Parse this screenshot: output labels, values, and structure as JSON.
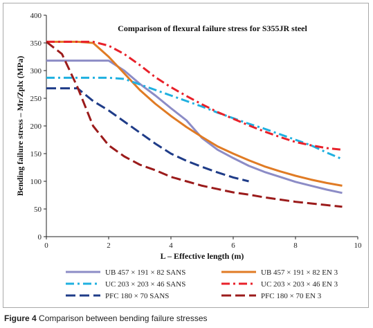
{
  "colors": {
    "ub_sans": "#8c8cc6",
    "ub_en3": "#e07b24",
    "uc_sans": "#1fb0e0",
    "uc_en3": "#e8212a",
    "pfc_sans": "#1f3c88",
    "pfc_en3": "#9b1b1b"
  },
  "caption": {
    "label": "Figure 4",
    "text": "Comparison between bending failure stresses"
  },
  "chart_data": {
    "type": "line",
    "title": "Comparison of flexural failure stress for S355JR steel",
    "xlabel": "L – Effective length (m)",
    "ylabel": "Bending failure stress – Mr/Zplx (MPa)",
    "xlim": [
      0,
      10
    ],
    "ylim": [
      0,
      400
    ],
    "xticks": [
      "0",
      "2",
      "4",
      "6",
      "8",
      "10"
    ],
    "yticks": [
      "0",
      "50",
      "100",
      "150",
      "200",
      "250",
      "300",
      "350",
      "400"
    ],
    "grid": false,
    "legend_position": "bottom",
    "series": [
      {
        "name": "UB 457 × 191 × 82 SANS",
        "style": "solid",
        "color_key": "ub_sans",
        "points": [
          [
            0,
            318
          ],
          [
            0.5,
            318
          ],
          [
            1,
            318
          ],
          [
            1.5,
            318
          ],
          [
            2,
            318
          ],
          [
            2.5,
            300
          ],
          [
            3,
            276
          ],
          [
            3.5,
            255
          ],
          [
            4,
            232
          ],
          [
            4.5,
            210
          ],
          [
            5,
            178
          ],
          [
            5.5,
            157
          ],
          [
            6,
            142
          ],
          [
            6.5,
            128
          ],
          [
            7,
            117
          ],
          [
            7.5,
            108
          ],
          [
            8,
            99
          ],
          [
            8.5,
            92
          ],
          [
            9,
            85
          ],
          [
            9.5,
            79
          ]
        ]
      },
      {
        "name": "UB 457 × 191 × 82 EN 3",
        "style": "solid",
        "color_key": "ub_en3",
        "points": [
          [
            0,
            352
          ],
          [
            0.5,
            352
          ],
          [
            1,
            352
          ],
          [
            1.5,
            350
          ],
          [
            2,
            325
          ],
          [
            2.5,
            295
          ],
          [
            3,
            265
          ],
          [
            3.5,
            240
          ],
          [
            4,
            218
          ],
          [
            4.5,
            198
          ],
          [
            5,
            180
          ],
          [
            5.5,
            163
          ],
          [
            6,
            150
          ],
          [
            6.5,
            138
          ],
          [
            7,
            127
          ],
          [
            7.5,
            118
          ],
          [
            8,
            110
          ],
          [
            8.5,
            103
          ],
          [
            9,
            97
          ],
          [
            9.5,
            92
          ]
        ]
      },
      {
        "name": "UC 203 × 203 × 46 SANS",
        "style": "dashdot",
        "color_key": "uc_sans",
        "points": [
          [
            0,
            287
          ],
          [
            0.5,
            287
          ],
          [
            1,
            287
          ],
          [
            1.5,
            287
          ],
          [
            2,
            287
          ],
          [
            2.5,
            285
          ],
          [
            3,
            275
          ],
          [
            3.5,
            265
          ],
          [
            4,
            255
          ],
          [
            4.5,
            245
          ],
          [
            5,
            235
          ],
          [
            5.5,
            224
          ],
          [
            6,
            214
          ],
          [
            6.5,
            204
          ],
          [
            7,
            195
          ],
          [
            7.5,
            185
          ],
          [
            8,
            175
          ],
          [
            8.5,
            165
          ],
          [
            9,
            152
          ],
          [
            9.5,
            140
          ]
        ]
      },
      {
        "name": "UC 203 × 203 × 46 EN 3",
        "style": "dashdot",
        "color_key": "uc_en3",
        "points": [
          [
            0,
            352
          ],
          [
            0.5,
            352
          ],
          [
            1,
            352
          ],
          [
            1.5,
            352
          ],
          [
            2,
            345
          ],
          [
            2.5,
            330
          ],
          [
            3,
            310
          ],
          [
            3.5,
            288
          ],
          [
            4,
            270
          ],
          [
            4.5,
            254
          ],
          [
            5,
            239
          ],
          [
            5.5,
            225
          ],
          [
            6,
            213
          ],
          [
            6.5,
            201
          ],
          [
            7,
            190
          ],
          [
            7.5,
            180
          ],
          [
            8,
            171
          ],
          [
            8.5,
            165
          ],
          [
            9,
            160
          ],
          [
            9.5,
            157
          ]
        ]
      },
      {
        "name": "PFC 180 × 70 SANS",
        "style": "dash",
        "color_key": "pfc_sans",
        "points": [
          [
            0,
            268
          ],
          [
            0.5,
            268
          ],
          [
            1,
            268
          ],
          [
            1.5,
            245
          ],
          [
            2,
            228
          ],
          [
            2.5,
            208
          ],
          [
            3,
            188
          ],
          [
            3.5,
            168
          ],
          [
            4,
            150
          ],
          [
            4.5,
            137
          ],
          [
            5,
            126
          ],
          [
            5.5,
            116
          ],
          [
            6,
            107
          ],
          [
            6.5,
            100
          ]
        ]
      },
      {
        "name": "PFC 180 × 70 EN 3",
        "style": "dash",
        "color_key": "pfc_en3",
        "points": [
          [
            0,
            352
          ],
          [
            0.5,
            330
          ],
          [
            1,
            270
          ],
          [
            1.5,
            200
          ],
          [
            2,
            165
          ],
          [
            2.5,
            145
          ],
          [
            3,
            130
          ],
          [
            3.5,
            120
          ],
          [
            4,
            108
          ],
          [
            4.5,
            100
          ],
          [
            5,
            92
          ],
          [
            5.5,
            86
          ],
          [
            6,
            80
          ],
          [
            6.5,
            76
          ],
          [
            7,
            71
          ],
          [
            7.5,
            67
          ],
          [
            8,
            63
          ],
          [
            8.5,
            60
          ],
          [
            9,
            57
          ],
          [
            9.5,
            54
          ]
        ]
      }
    ]
  }
}
